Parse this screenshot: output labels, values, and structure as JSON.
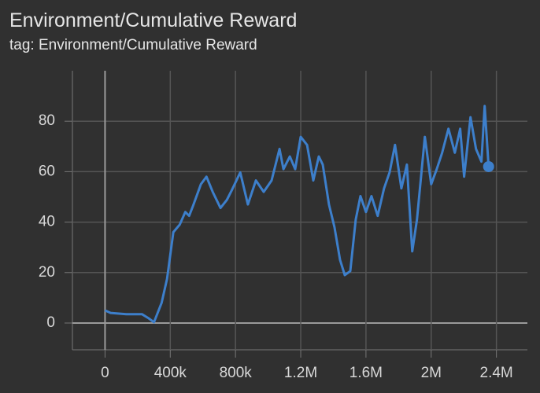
{
  "chart_data": {
    "type": "line",
    "title": "Environment/Cumulative Reward",
    "subtitle": "tag: Environment/Cumulative Reward",
    "x": [
      0,
      34000,
      130000,
      226000,
      265000,
      300000,
      347000,
      380000,
      419000,
      458000,
      492000,
      516000,
      540000,
      588000,
      622000,
      660000,
      708000,
      747000,
      780000,
      829000,
      876000,
      925000,
      973000,
      1021000,
      1070000,
      1094000,
      1133000,
      1166000,
      1200000,
      1239000,
      1277000,
      1311000,
      1335000,
      1373000,
      1407000,
      1441000,
      1470000,
      1504000,
      1537000,
      1566000,
      1600000,
      1634000,
      1672000,
      1711000,
      1745000,
      1778000,
      1817000,
      1851000,
      1884000,
      1913000,
      1961000,
      2000000,
      2034000,
      2067000,
      2106000,
      2145000,
      2178000,
      2202000,
      2241000,
      2275000,
      2308000,
      2328000,
      2352000
    ],
    "series": [
      {
        "color": "#3d7fcb",
        "values": [
          5,
          4,
          3.5,
          3.5,
          2,
          0.3,
          8,
          17.5,
          36,
          39,
          44,
          42.5,
          46.5,
          55,
          58,
          52,
          45.6,
          48.8,
          53,
          59.7,
          47,
          56.5,
          52,
          56.5,
          69,
          61,
          66,
          61,
          73.8,
          70.6,
          56.5,
          66,
          62.8,
          47,
          38,
          25,
          19,
          20.6,
          41,
          50.3,
          44,
          50.3,
          42.5,
          53.4,
          59.7,
          70.6,
          53.4,
          62.8,
          28.4,
          41,
          73.8,
          55,
          61,
          67.5,
          77,
          67.5,
          77,
          58,
          81.6,
          69,
          64,
          86,
          62
        ]
      }
    ],
    "xlim": [
      -200000,
      2590000
    ],
    "ylim": [
      -10.6,
      100
    ],
    "xticks": [
      0,
      {
        "value": 400000,
        "label": "400k"
      },
      {
        "value": 800000,
        "label": "800k"
      },
      {
        "value": 1200000,
        "label": "1.2M"
      },
      {
        "value": 1600000,
        "label": "1.6M"
      },
      {
        "value": 2000000,
        "label": "2M"
      },
      {
        "value": 2400000,
        "label": "2.4M"
      }
    ],
    "yticks": [
      0,
      20,
      40,
      60,
      80
    ],
    "grid": true
  }
}
